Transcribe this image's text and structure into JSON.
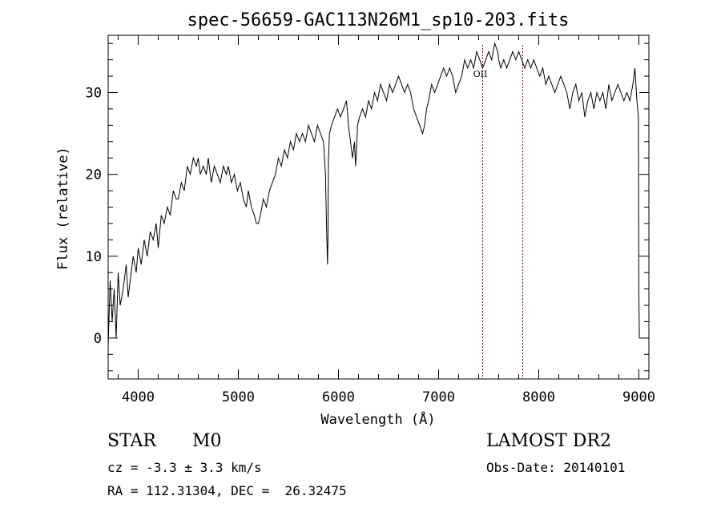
{
  "chart_data": {
    "type": "line",
    "title": "spec-56659-GAC113N26M1_sp10-203.fits",
    "xlabel": "Wavelength (Å)",
    "ylabel": "Flux (relative)",
    "xlim": [
      3700,
      9100
    ],
    "ylim": [
      -5,
      37
    ],
    "xticks": [
      4000,
      5000,
      6000,
      7000,
      8000,
      9000
    ],
    "yticks": [
      0,
      10,
      20,
      30
    ],
    "grid": false,
    "series": [
      {
        "x": [
          3700,
          3720,
          3740,
          3760,
          3780,
          3800,
          3820,
          3850,
          3880,
          3900,
          3920,
          3950,
          3980,
          4000,
          4030,
          4060,
          4090,
          4120,
          4150,
          4180,
          4200,
          4230,
          4260,
          4290,
          4320,
          4350,
          4380,
          4400,
          4430,
          4460,
          4490,
          4520,
          4550,
          4580,
          4600,
          4620,
          4650,
          4680,
          4700,
          4730,
          4760,
          4790,
          4820,
          4850,
          4880,
          4900,
          4930,
          4960,
          4990,
          5020,
          5050,
          5080,
          5100,
          5130,
          5160,
          5180,
          5200,
          5220,
          5250,
          5280,
          5310,
          5340,
          5370,
          5400,
          5430,
          5460,
          5490,
          5520,
          5550,
          5580,
          5610,
          5640,
          5670,
          5700,
          5730,
          5760,
          5790,
          5820,
          5850,
          5870,
          5880,
          5890,
          5895,
          5900,
          5910,
          5930,
          5960,
          5990,
          6020,
          6050,
          6080,
          6100,
          6120,
          6140,
          6160,
          6170,
          6180,
          6190,
          6210,
          6240,
          6270,
          6300,
          6330,
          6360,
          6390,
          6420,
          6450,
          6480,
          6510,
          6540,
          6570,
          6600,
          6630,
          6660,
          6690,
          6720,
          6750,
          6780,
          6810,
          6840,
          6860,
          6880,
          6900,
          6930,
          6960,
          6990,
          7020,
          7050,
          7080,
          7110,
          7140,
          7170,
          7200,
          7230,
          7260,
          7290,
          7320,
          7350,
          7380,
          7410,
          7440,
          7470,
          7500,
          7530,
          7560,
          7590,
          7600,
          7620,
          7650,
          7680,
          7710,
          7740,
          7770,
          7800,
          7830,
          7860,
          7890,
          7920,
          7950,
          7980,
          8010,
          8040,
          8070,
          8100,
          8130,
          8160,
          8190,
          8220,
          8250,
          8280,
          8310,
          8340,
          8370,
          8400,
          8430,
          8460,
          8490,
          8520,
          8550,
          8580,
          8610,
          8640,
          8670,
          8700,
          8730,
          8760,
          8790,
          8820,
          8850,
          8880,
          8910,
          8940,
          8960,
          8980,
          8995,
          9000,
          9005
        ],
        "values": [
          -1,
          7,
          2,
          6,
          0,
          8,
          4,
          6,
          9,
          5,
          7,
          10,
          8,
          11,
          9,
          12,
          10,
          13,
          12,
          14,
          11,
          15,
          14,
          16,
          15,
          18,
          17,
          17,
          19,
          18,
          21,
          20,
          22,
          21,
          22,
          20,
          21,
          20,
          22,
          19,
          21,
          20,
          19,
          21,
          20,
          21,
          19,
          20,
          18,
          19,
          17,
          16,
          18,
          16,
          15,
          14,
          14,
          15,
          17,
          16,
          18,
          19,
          20,
          22,
          21,
          23,
          22,
          24,
          23,
          25,
          24,
          25,
          24,
          26,
          25,
          24,
          26,
          25,
          24,
          20,
          14,
          9,
          12,
          22,
          25,
          26,
          27,
          28,
          27,
          28,
          29,
          26,
          24,
          22,
          24,
          21,
          23,
          26,
          27,
          28,
          27,
          29,
          28,
          30,
          29,
          31,
          30,
          29,
          31,
          30,
          31,
          32,
          31,
          30,
          31,
          30,
          28,
          27,
          26,
          25,
          26,
          28,
          29,
          31,
          30,
          31,
          32,
          33,
          32,
          33,
          32,
          30,
          31,
          32,
          34,
          33,
          34,
          33,
          35,
          34,
          33,
          34,
          35,
          34,
          36,
          35,
          34,
          33,
          34,
          33,
          34,
          35,
          34,
          35,
          34,
          33,
          34,
          33,
          34,
          33,
          32,
          33,
          31,
          32,
          31,
          30,
          31,
          32,
          31,
          30,
          28,
          30,
          31,
          29,
          30,
          27,
          29,
          30,
          28,
          30,
          29,
          30,
          28,
          31,
          29,
          30,
          31,
          30,
          29,
          30,
          29,
          31,
          33,
          29,
          27,
          5,
          0
        ]
      }
    ],
    "markers": [
      {
        "x": 7440,
        "label": "OII",
        "color": "#8b0000"
      },
      {
        "x": 7840,
        "label": "",
        "color": "#8b0000"
      }
    ]
  },
  "info": {
    "class_label": "STAR",
    "subclass": "M0",
    "survey": "LAMOST DR2",
    "redshift_text": "cz = -3.3 ± 3.3 km/s",
    "obs_date": "Obs-Date: 20140101",
    "coords_text": "RA = 112.31304, DEC =  26.32475"
  }
}
